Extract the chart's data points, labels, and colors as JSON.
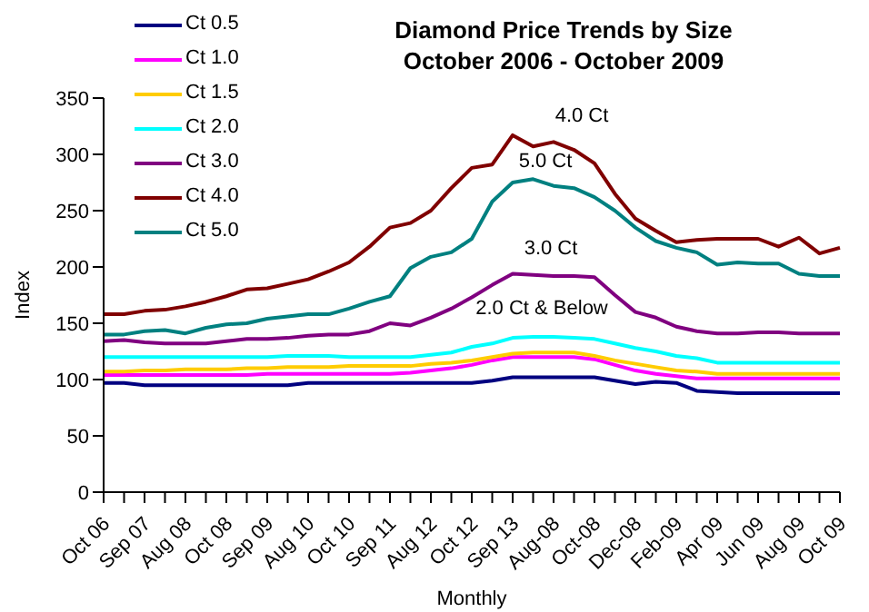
{
  "chart_data": {
    "type": "line",
    "title": "Diamond Price Trends by Size",
    "subtitle": "October 2006 - October 2009",
    "xlabel": "Monthly",
    "ylabel": "Index",
    "categories": [
      "Oct 06",
      null,
      "Sep 07",
      null,
      "Aug 08",
      null,
      "Oct 08",
      null,
      "Sep 09",
      null,
      "Aug 10",
      null,
      "Oct 10",
      null,
      "Sep 11",
      null,
      "Aug 12",
      null,
      "Oct 12",
      null,
      "Sep 13",
      null,
      "Aug-08",
      null,
      "Oct-08",
      null,
      "Dec-08",
      null,
      "Feb-09",
      null,
      "Apr 09",
      null,
      "Jun 09",
      null,
      "Aug 09",
      null,
      "Oct 09"
    ],
    "series": [
      {
        "name": "Ct 0.5",
        "color": "#000080",
        "values": [
          97,
          97,
          95,
          95,
          95,
          95,
          95,
          95,
          95,
          95,
          97,
          97,
          97,
          97,
          97,
          97,
          97,
          97,
          97,
          99,
          102,
          102,
          102,
          102,
          102,
          99,
          96,
          98,
          97,
          90,
          89,
          88,
          88,
          88,
          88,
          88,
          88
        ]
      },
      {
        "name": "Ct 1.0",
        "color": "#ff00ff",
        "values": [
          104,
          104,
          104,
          104,
          104,
          104,
          104,
          104,
          105,
          105,
          105,
          105,
          105,
          105,
          105,
          106,
          108,
          110,
          113,
          117,
          120,
          120,
          120,
          120,
          118,
          113,
          108,
          105,
          103,
          101,
          101,
          101,
          101,
          101,
          101,
          101,
          101
        ]
      },
      {
        "name": "Ct 1.5",
        "color": "#ffcc00",
        "values": [
          107,
          107,
          108,
          108,
          109,
          109,
          109,
          110,
          110,
          111,
          111,
          111,
          112,
          112,
          112,
          112,
          114,
          115,
          117,
          120,
          123,
          124,
          124,
          124,
          121,
          117,
          114,
          111,
          108,
          107,
          105,
          105,
          105,
          105,
          105,
          105,
          105
        ]
      },
      {
        "name": "Ct 2.0",
        "color": "#00ffff",
        "values": [
          120,
          120,
          120,
          120,
          120,
          120,
          120,
          120,
          120,
          121,
          121,
          121,
          120,
          120,
          120,
          120,
          122,
          124,
          129,
          132,
          137,
          138,
          138,
          137,
          136,
          132,
          128,
          125,
          121,
          119,
          115,
          115,
          115,
          115,
          115,
          115,
          115
        ]
      },
      {
        "name": "Ct 3.0",
        "color": "#800080",
        "values": [
          134,
          135,
          133,
          132,
          132,
          132,
          134,
          136,
          136,
          137,
          139,
          140,
          140,
          143,
          150,
          148,
          155,
          163,
          173,
          184,
          194,
          193,
          192,
          192,
          191,
          175,
          160,
          155,
          147,
          143,
          141,
          141,
          142,
          142,
          141,
          141,
          141
        ]
      },
      {
        "name": "Ct 4.0",
        "color": "#800000",
        "values": [
          158,
          158,
          161,
          162,
          165,
          169,
          174,
          180,
          181,
          185,
          189,
          196,
          204,
          218,
          235,
          239,
          250,
          270,
          288,
          291,
          317,
          307,
          311,
          304,
          292,
          265,
          243,
          232,
          222,
          224,
          225,
          225,
          225,
          218,
          226,
          212,
          217
        ]
      },
      {
        "name": "Ct 5.0",
        "color": "#008080",
        "values": [
          140,
          140,
          143,
          144,
          141,
          146,
          149,
          150,
          154,
          156,
          158,
          158,
          163,
          169,
          174,
          199,
          209,
          213,
          225,
          258,
          275,
          278,
          272,
          270,
          262,
          250,
          235,
          223,
          217,
          213,
          202,
          204,
          203,
          203,
          194,
          192,
          192
        ]
      }
    ],
    "ylim": [
      0,
      350
    ],
    "yticks": [
      0,
      50,
      100,
      150,
      200,
      250,
      300,
      350
    ],
    "legend": "top left",
    "marker": "none",
    "line_style": "solid",
    "annotations": [
      "4.0 Ct",
      "5.0 Ct",
      "3.0 Ct",
      "2.0 Ct & Below"
    ]
  }
}
